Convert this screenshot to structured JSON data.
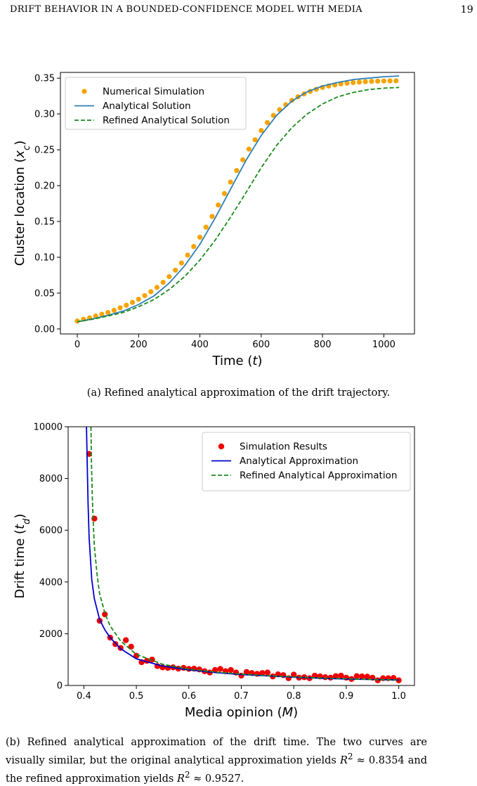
{
  "header": {
    "title": "DRIFT BEHAVIOR IN A BOUNDED-CONFIDENCE MODEL WITH MEDIA",
    "page_number": "19"
  },
  "figures": [
    {
      "caption": "(a) Refined analytical approximation of the drift trajectory."
    },
    {
      "caption_parts": [
        "(b) Refined analytical approximation of the drift time. The two curves are visually similar, but the original analytical approximation yields ",
        "R",
        "2",
        " ≈ 0.8354 and the refined approximation yields ",
        "R",
        "2",
        " ≈ 0.9527."
      ]
    }
  ],
  "colors": {
    "sim_a": "#f5a300",
    "analytic_a": "#2f7fb6",
    "refined": "#1a8a1a",
    "sim_b": "#ee0000",
    "analytic_b": "#0000cc"
  },
  "chart_data": [
    {
      "type": "line",
      "xlabel": "Time (t)",
      "ylabel": "Cluster location (xc)",
      "xlim": [
        -55,
        1100
      ],
      "ylim": [
        -0.007,
        0.358
      ],
      "xticks": [
        "0",
        "200",
        "400",
        "600",
        "800",
        "1000"
      ],
      "yticks": [
        "0.00",
        "0.05",
        "0.10",
        "0.15",
        "0.20",
        "0.25",
        "0.30",
        "0.35"
      ],
      "legend_position": "top-left",
      "series": [
        {
          "name": "Numerical Simulation",
          "style": "markers",
          "x": [
            0,
            20,
            40,
            60,
            80,
            100,
            120,
            140,
            160,
            180,
            200,
            220,
            240,
            260,
            280,
            300,
            320,
            340,
            360,
            380,
            400,
            420,
            440,
            460,
            480,
            500,
            520,
            540,
            560,
            580,
            600,
            620,
            640,
            660,
            680,
            700,
            720,
            740,
            760,
            780,
            800,
            820,
            840,
            860,
            880,
            900,
            920,
            940,
            960,
            980,
            1000,
            1020,
            1040
          ],
          "y": [
            0.011,
            0.0135,
            0.0155,
            0.018,
            0.0205,
            0.023,
            0.026,
            0.0295,
            0.033,
            0.037,
            0.0415,
            0.0465,
            0.052,
            0.058,
            0.065,
            0.073,
            0.082,
            0.092,
            0.103,
            0.115,
            0.128,
            0.142,
            0.157,
            0.173,
            0.189,
            0.205,
            0.221,
            0.236,
            0.251,
            0.264,
            0.277,
            0.288,
            0.298,
            0.306,
            0.313,
            0.319,
            0.324,
            0.328,
            0.3315,
            0.3345,
            0.337,
            0.339,
            0.3405,
            0.342,
            0.343,
            0.3438,
            0.3445,
            0.345,
            0.3455,
            0.3458,
            0.346,
            0.3462,
            0.3463
          ]
        },
        {
          "name": "Analytical Solution",
          "style": "solid",
          "x": [
            0,
            50,
            100,
            150,
            200,
            250,
            300,
            350,
            400,
            450,
            500,
            550,
            600,
            650,
            700,
            750,
            800,
            850,
            900,
            950,
            1000,
            1050
          ],
          "y": [
            0.01,
            0.014,
            0.019,
            0.025,
            0.034,
            0.046,
            0.064,
            0.088,
            0.118,
            0.155,
            0.195,
            0.235,
            0.27,
            0.298,
            0.318,
            0.331,
            0.339,
            0.344,
            0.348,
            0.35,
            0.352,
            0.353
          ]
        },
        {
          "name": "Refined Analytical Solution",
          "style": "dashed",
          "x": [
            0,
            50,
            100,
            150,
            200,
            250,
            300,
            350,
            400,
            450,
            500,
            550,
            600,
            650,
            700,
            750,
            800,
            850,
            900,
            950,
            1000,
            1050
          ],
          "y": [
            0.01,
            0.0135,
            0.018,
            0.023,
            0.031,
            0.041,
            0.055,
            0.073,
            0.096,
            0.124,
            0.156,
            0.19,
            0.225,
            0.256,
            0.281,
            0.3,
            0.314,
            0.324,
            0.33,
            0.334,
            0.336,
            0.337
          ]
        }
      ]
    },
    {
      "type": "line",
      "xlabel": "Media opinion (M)",
      "ylabel": "Drift time (td)",
      "xlim": [
        0.37,
        1.03
      ],
      "ylim": [
        0,
        10000
      ],
      "xticks": [
        "0.4",
        "0.5",
        "0.6",
        "0.7",
        "0.8",
        "0.9",
        "1.0"
      ],
      "yticks": [
        "0",
        "2000",
        "4000",
        "6000",
        "8000",
        "10000"
      ],
      "legend_position": "top-right",
      "series": [
        {
          "name": "Simulation Results",
          "style": "markers",
          "x": [
            0.41,
            0.42,
            0.43,
            0.44,
            0.45,
            0.46,
            0.47,
            0.48,
            0.49,
            0.5,
            0.51,
            0.52,
            0.53,
            0.54,
            0.55,
            0.56,
            0.57,
            0.58,
            0.59,
            0.6,
            0.61,
            0.62,
            0.63,
            0.64,
            0.65,
            0.66,
            0.67,
            0.68,
            0.69,
            0.7,
            0.71,
            0.72,
            0.73,
            0.74,
            0.75,
            0.76,
            0.77,
            0.78,
            0.79,
            0.8,
            0.81,
            0.82,
            0.83,
            0.84,
            0.85,
            0.86,
            0.87,
            0.88,
            0.89,
            0.9,
            0.91,
            0.92,
            0.93,
            0.94,
            0.95,
            0.96,
            0.97,
            0.98,
            0.99,
            1.0
          ],
          "y": [
            8950,
            6450,
            2500,
            2750,
            1850,
            1600,
            1450,
            1750,
            1500,
            1150,
            900,
            950,
            1000,
            750,
            700,
            680,
            700,
            650,
            680,
            640,
            650,
            620,
            550,
            500,
            600,
            640,
            550,
            600,
            500,
            380,
            520,
            480,
            450,
            480,
            500,
            350,
            430,
            400,
            280,
            420,
            300,
            320,
            280,
            380,
            350,
            320,
            300,
            360,
            380,
            300,
            250,
            360,
            350,
            340,
            300,
            200,
            280,
            280,
            290,
            200
          ]
        },
        {
          "name": "Analytical Approximation",
          "style": "solid",
          "x": [
            0.405,
            0.4065,
            0.408,
            0.41,
            0.415,
            0.42,
            0.43,
            0.44,
            0.45,
            0.47,
            0.5,
            0.55,
            0.6,
            0.65,
            0.7,
            0.75,
            0.8,
            0.85,
            0.9,
            0.95,
            1.0
          ],
          "y": [
            10000,
            8400,
            7000,
            5700,
            4100,
            3350,
            2550,
            2150,
            1850,
            1420,
            1030,
            750,
            600,
            500,
            420,
            370,
            320,
            280,
            250,
            230,
            210
          ]
        },
        {
          "name": "Refined Analytical Approximation",
          "style": "dashed",
          "x": [
            0.4135,
            0.4145,
            0.416,
            0.418,
            0.42,
            0.425,
            0.43,
            0.44,
            0.45,
            0.47,
            0.5,
            0.55,
            0.6,
            0.65,
            0.7,
            0.75,
            0.8,
            0.85,
            0.9,
            0.95,
            1.0
          ],
          "y": [
            10000,
            8600,
            7300,
            6200,
            5400,
            4300,
            3550,
            2800,
            2300,
            1720,
            1200,
            820,
            630,
            520,
            440,
            380,
            330,
            290,
            260,
            230,
            210
          ]
        }
      ]
    }
  ]
}
